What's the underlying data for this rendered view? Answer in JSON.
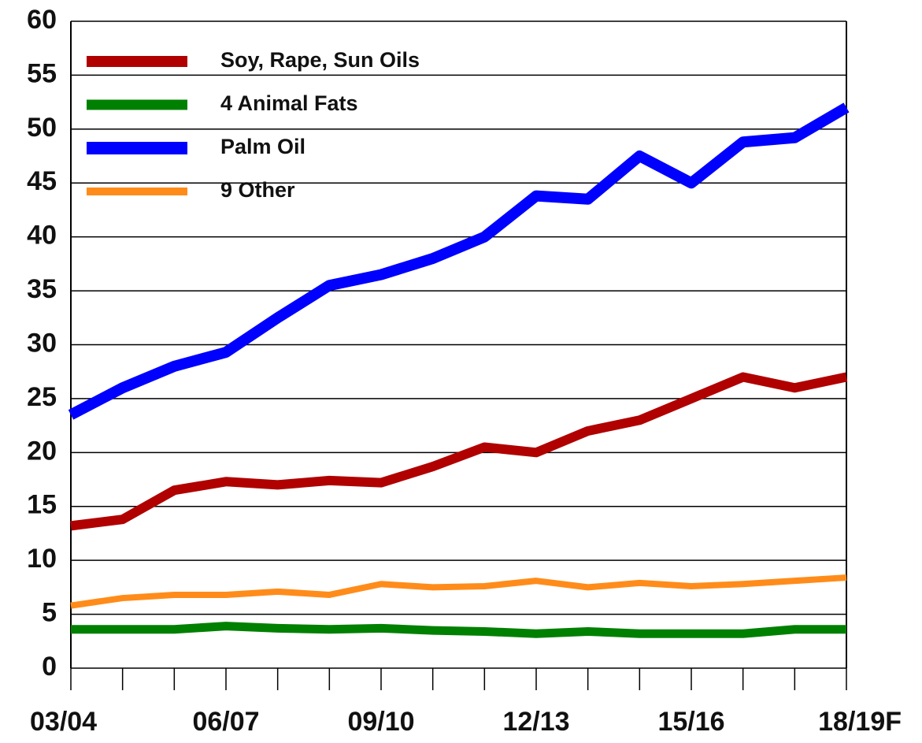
{
  "chart_data": {
    "type": "line",
    "categories": [
      "03/04",
      null,
      null,
      "06/07",
      null,
      null,
      "09/10",
      null,
      null,
      "12/13",
      null,
      null,
      "15/16",
      null,
      null,
      "18/19F"
    ],
    "series": [
      {
        "name": "Soy, Rape, Sun Oils",
        "color": "#b00000",
        "values": [
          13.2,
          13.8,
          16.5,
          17.3,
          17.0,
          17.4,
          17.2,
          18.7,
          20.5,
          20.0,
          22.0,
          23.0,
          25.0,
          27.0,
          26.0,
          27.0
        ]
      },
      {
        "name": "4 Animal Fats",
        "color": "#008000",
        "values": [
          3.6,
          3.6,
          3.6,
          3.9,
          3.7,
          3.6,
          3.7,
          3.5,
          3.4,
          3.2,
          3.4,
          3.2,
          3.2,
          3.2,
          3.6,
          3.6
        ]
      },
      {
        "name": "Palm Oil",
        "color": "#0000ff",
        "values": [
          23.5,
          26.0,
          28.0,
          29.3,
          32.5,
          35.5,
          36.5,
          38.0,
          40.0,
          43.8,
          43.5,
          47.5,
          45.0,
          48.8,
          49.2,
          52.0
        ]
      },
      {
        "name": "9 Other",
        "color": "#ff8c1a",
        "values": [
          5.8,
          6.5,
          6.8,
          6.8,
          7.1,
          6.8,
          7.8,
          7.5,
          7.6,
          8.1,
          7.5,
          7.9,
          7.6,
          7.8,
          8.1,
          8.4
        ]
      }
    ],
    "ylim": [
      0,
      60
    ],
    "yticks": [
      0,
      5,
      10,
      15,
      20,
      25,
      30,
      35,
      40,
      45,
      50,
      55,
      60
    ],
    "grid": true,
    "legend": "upper left"
  }
}
